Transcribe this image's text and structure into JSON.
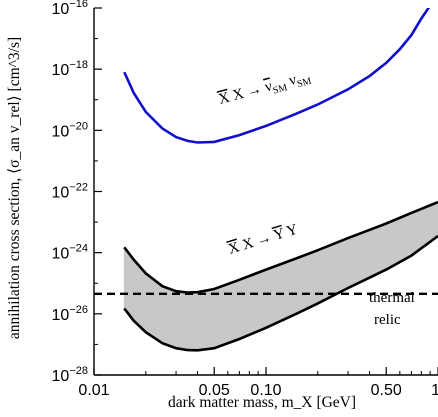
{
  "chart_data": {
    "type": "line",
    "xlabel": "dark matter mass, m_X [GeV]",
    "ylabel": "annihilation cross section, ⟨σ_an v_rel⟩ [cm^3/s]",
    "xscale": "log",
    "yscale": "log",
    "xlim": [
      0.01,
      1.0
    ],
    "ylim": [
      1e-28,
      1e-16
    ],
    "xticks": [
      {
        "value": 0.01,
        "label": "0.01"
      },
      {
        "value": 0.05,
        "label": "0.05"
      },
      {
        "value": 0.1,
        "label": "0.10"
      },
      {
        "value": 0.5,
        "label": "0.50"
      },
      {
        "value": 1.0,
        "label": "1"
      }
    ],
    "yticks": [
      {
        "value": 1e-28,
        "base": "10",
        "exp": "−28"
      },
      {
        "value": 1e-26,
        "base": "10",
        "exp": "−26"
      },
      {
        "value": 1e-24,
        "base": "10",
        "exp": "−24"
      },
      {
        "value": 1e-22,
        "base": "10",
        "exp": "−22"
      },
      {
        "value": 1e-20,
        "base": "10",
        "exp": "−20"
      },
      {
        "value": 1e-18,
        "base": "10",
        "exp": "−18"
      },
      {
        "value": 1e-16,
        "base": "10",
        "exp": "−16"
      }
    ],
    "grid": false,
    "series": [
      {
        "name": "X̄ X → ν̄_SM ν_SM",
        "color": "#1010cc",
        "points": [
          [
            0.015,
            8e-19
          ],
          [
            0.017,
            1.7e-19
          ],
          [
            0.02,
            4e-20
          ],
          [
            0.025,
            1.15e-20
          ],
          [
            0.03,
            6e-21
          ],
          [
            0.035,
            4.5e-21
          ],
          [
            0.04,
            4e-21
          ],
          [
            0.05,
            4.2e-21
          ],
          [
            0.07,
            7e-21
          ],
          [
            0.1,
            1.4e-20
          ],
          [
            0.15,
            3.5e-20
          ],
          [
            0.2,
            7e-20
          ],
          [
            0.3,
            2.2e-19
          ],
          [
            0.4,
            6e-19
          ],
          [
            0.5,
            1.6e-18
          ],
          [
            0.6,
            4.5e-18
          ],
          [
            0.7,
            1.3e-17
          ],
          [
            0.8,
            4.5e-17
          ],
          [
            0.9,
            1.2e-16
          ]
        ]
      },
      {
        "name": "X̄ X → Ȳ Y",
        "color": "#000000",
        "band": true,
        "fill": "#c8c8c8",
        "upper": [
          [
            0.015,
            1.5e-24
          ],
          [
            0.017,
            6e-25
          ],
          [
            0.02,
            2.1e-25
          ],
          [
            0.025,
            8e-26
          ],
          [
            0.03,
            5.5e-26
          ],
          [
            0.035,
            5e-26
          ],
          [
            0.04,
            5.1e-26
          ],
          [
            0.05,
            6.5e-26
          ],
          [
            0.07,
            1.3e-25
          ],
          [
            0.1,
            2.8e-25
          ],
          [
            0.15,
            6.5e-25
          ],
          [
            0.2,
            1.2e-24
          ],
          [
            0.3,
            3e-24
          ],
          [
            0.5,
            9e-24
          ],
          [
            0.7,
            2e-23
          ],
          [
            1.0,
            4.5e-23
          ]
        ],
        "lower": [
          [
            0.015,
            1.5e-26
          ],
          [
            0.017,
            6e-27
          ],
          [
            0.02,
            2.5e-27
          ],
          [
            0.025,
            1.1e-27
          ],
          [
            0.03,
            7.5e-28
          ],
          [
            0.035,
            6.5e-28
          ],
          [
            0.04,
            6.4e-28
          ],
          [
            0.05,
            7.5e-28
          ],
          [
            0.07,
            1.5e-27
          ],
          [
            0.1,
            3.5e-27
          ],
          [
            0.15,
            1e-26
          ],
          [
            0.2,
            2.2e-26
          ],
          [
            0.3,
            7e-26
          ],
          [
            0.5,
            2.8e-25
          ],
          [
            0.7,
            8e-25
          ],
          [
            1.0,
            3.5e-24
          ]
        ]
      }
    ],
    "reference_lines": [
      {
        "y": 4.5e-26,
        "style": "dashed",
        "color": "#000000"
      }
    ],
    "annotations": {
      "nu_label": {
        "bar": "X",
        "mid": " X → ",
        "bar2": "ν",
        "sub": "SM",
        "sp": " ",
        "nu": "ν",
        "sub2": "SM"
      },
      "y_label": {
        "bar": "X",
        "mid": " X → ",
        "bar2": "Y",
        "tail": " Y"
      },
      "thermal": "thermal",
      "relic": "relic"
    }
  }
}
